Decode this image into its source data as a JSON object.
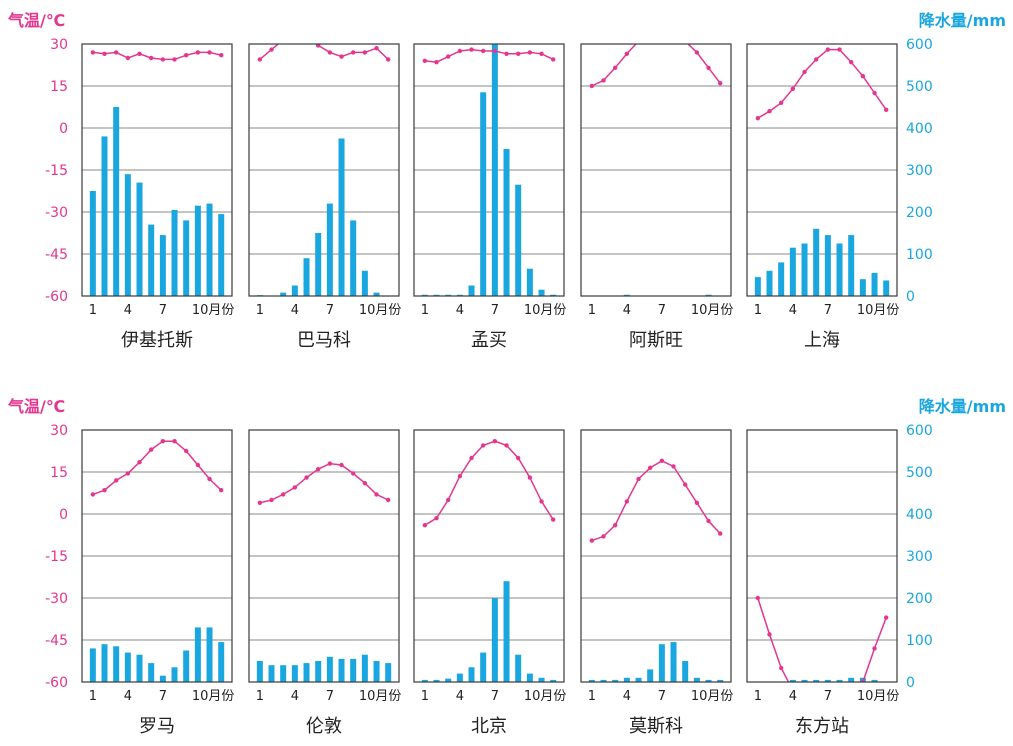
{
  "colors": {
    "temperature": "#e5368f",
    "precipitation": "#1aa6df",
    "frame": "#3a3a3a",
    "grid": "#8a8a8a",
    "text": "#222222"
  },
  "axes": {
    "temp_title": "气温/℃",
    "precip_title": "降水量/mm",
    "temp_ticks": [
      "30",
      "15",
      "0",
      "-15",
      "-30",
      "-45",
      "-60"
    ],
    "precip_ticks": [
      "600",
      "500",
      "400",
      "300",
      "200",
      "100",
      "0"
    ],
    "temp_range": [
      -60,
      30
    ],
    "precip_range": [
      0,
      600
    ],
    "x_ticks": [
      "1",
      "4",
      "7",
      "10月份"
    ]
  },
  "chart_data": [
    {
      "type": "bar+line",
      "title": "伊基托斯",
      "temperature": [
        27,
        26.5,
        27,
        25,
        26.5,
        25,
        24.5,
        24.5,
        26,
        27,
        27,
        26
      ],
      "precipitation": [
        250,
        380,
        450,
        290,
        270,
        170,
        145,
        205,
        180,
        215,
        220,
        195
      ]
    },
    {
      "type": "bar+line",
      "title": "巴马科",
      "temperature": [
        24.5,
        28,
        31.5,
        33,
        32.5,
        29.5,
        27,
        25.5,
        27,
        27,
        28.5,
        24.5
      ],
      "precipitation": [
        2,
        0,
        8,
        25,
        90,
        150,
        220,
        375,
        180,
        60,
        8,
        0
      ],
      "row": 0
    },
    {
      "type": "bar+line",
      "title": "孟买",
      "temperature": [
        24,
        23.5,
        25.5,
        27.5,
        28,
        27.5,
        27.5,
        26.5,
        26.5,
        27,
        26.5,
        24.5
      ],
      "precipitation": [
        3,
        3,
        3,
        3,
        25,
        485,
        630,
        350,
        265,
        65,
        15,
        3
      ]
    },
    {
      "type": "bar+line",
      "title": "阿斯旺",
      "temperature": [
        15,
        17,
        21.5,
        26.5,
        31,
        33,
        33.5,
        33,
        31,
        27,
        21.5,
        16
      ],
      "precipitation": [
        0,
        0,
        0,
        3,
        0,
        0,
        0,
        0,
        0,
        0,
        3,
        0
      ]
    },
    {
      "type": "bar+line",
      "title": "上海",
      "temperature": [
        3.5,
        6,
        9,
        14,
        20,
        24.5,
        28,
        28,
        23.5,
        18.5,
        12.5,
        6.5
      ],
      "precipitation": [
        45,
        60,
        80,
        115,
        125,
        160,
        145,
        125,
        145,
        40,
        55,
        37
      ]
    },
    {
      "type": "bar+line",
      "title": "罗马",
      "temperature": [
        7,
        8.5,
        12,
        14.5,
        18.5,
        23,
        26,
        26,
        22.5,
        17.5,
        12.5,
        8.5
      ],
      "precipitation": [
        80,
        90,
        85,
        70,
        65,
        45,
        15,
        35,
        75,
        130,
        130,
        95
      ]
    },
    {
      "type": "bar+line",
      "title": "伦敦",
      "temperature": [
        4,
        5,
        7,
        9.5,
        13,
        16,
        18,
        17.5,
        14.5,
        11,
        7,
        5
      ],
      "precipitation": [
        50,
        40,
        40,
        40,
        45,
        50,
        60,
        55,
        55,
        65,
        50,
        45
      ]
    },
    {
      "type": "bar+line",
      "title": "北京",
      "temperature": [
        -4,
        -1.5,
        5,
        13.5,
        20,
        24.5,
        26,
        24.5,
        20,
        13,
        4.5,
        -2
      ],
      "precipitation": [
        5,
        5,
        8,
        20,
        35,
        70,
        200,
        240,
        65,
        20,
        10,
        5
      ]
    },
    {
      "type": "bar+line",
      "title": "莫斯科",
      "temperature": [
        -9.5,
        -8,
        -4,
        4.5,
        12.5,
        16.5,
        19,
        17,
        10.5,
        4,
        -2.5,
        -7
      ],
      "precipitation": [
        5,
        5,
        5,
        10,
        10,
        30,
        90,
        95,
        50,
        10,
        5,
        5
      ]
    },
    {
      "type": "bar+line",
      "title": "东方站",
      "temperature": [
        -30,
        -43,
        -55,
        -63,
        -62,
        -66,
        -64,
        -70,
        -65,
        -60,
        -48,
        -37
      ],
      "precipitation": [
        0,
        0,
        0,
        5,
        5,
        5,
        5,
        5,
        10,
        10,
        5,
        0
      ]
    }
  ]
}
